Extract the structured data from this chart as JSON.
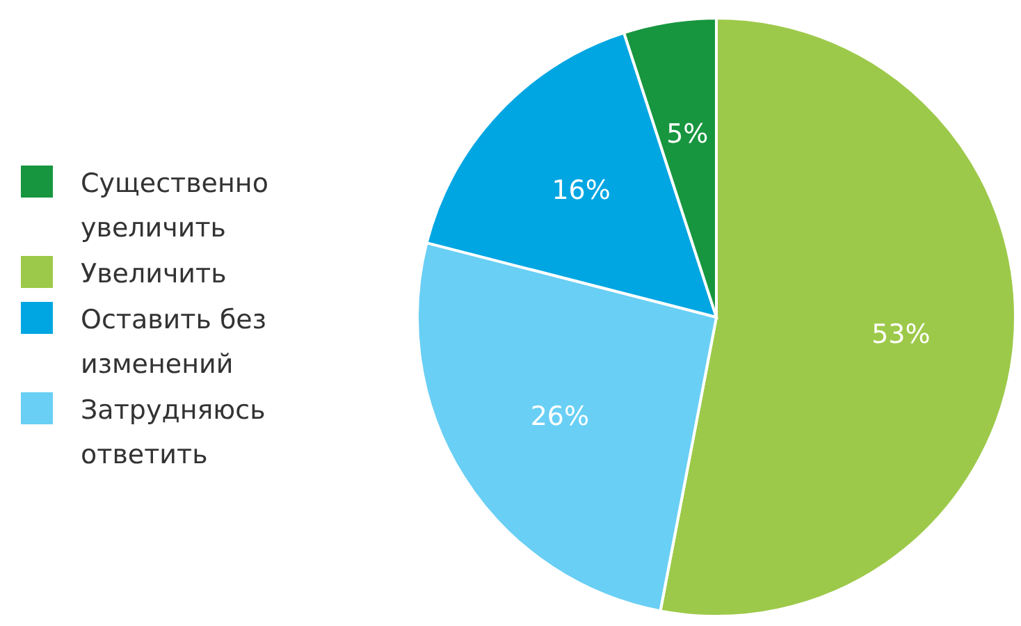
{
  "chart_data": {
    "type": "pie",
    "categories": [
      "Увеличить",
      "Затрудняюсь ответить",
      "Оставить без изменений",
      "Существенно увеличить"
    ],
    "values": [
      53,
      26,
      16,
      5
    ],
    "colors": [
      "#9dc94a",
      "#69cff4",
      "#00a6e2",
      "#17963f"
    ],
    "value_labels": [
      "53%",
      "26%",
      "16%",
      "5%"
    ],
    "legend": "left"
  }
}
